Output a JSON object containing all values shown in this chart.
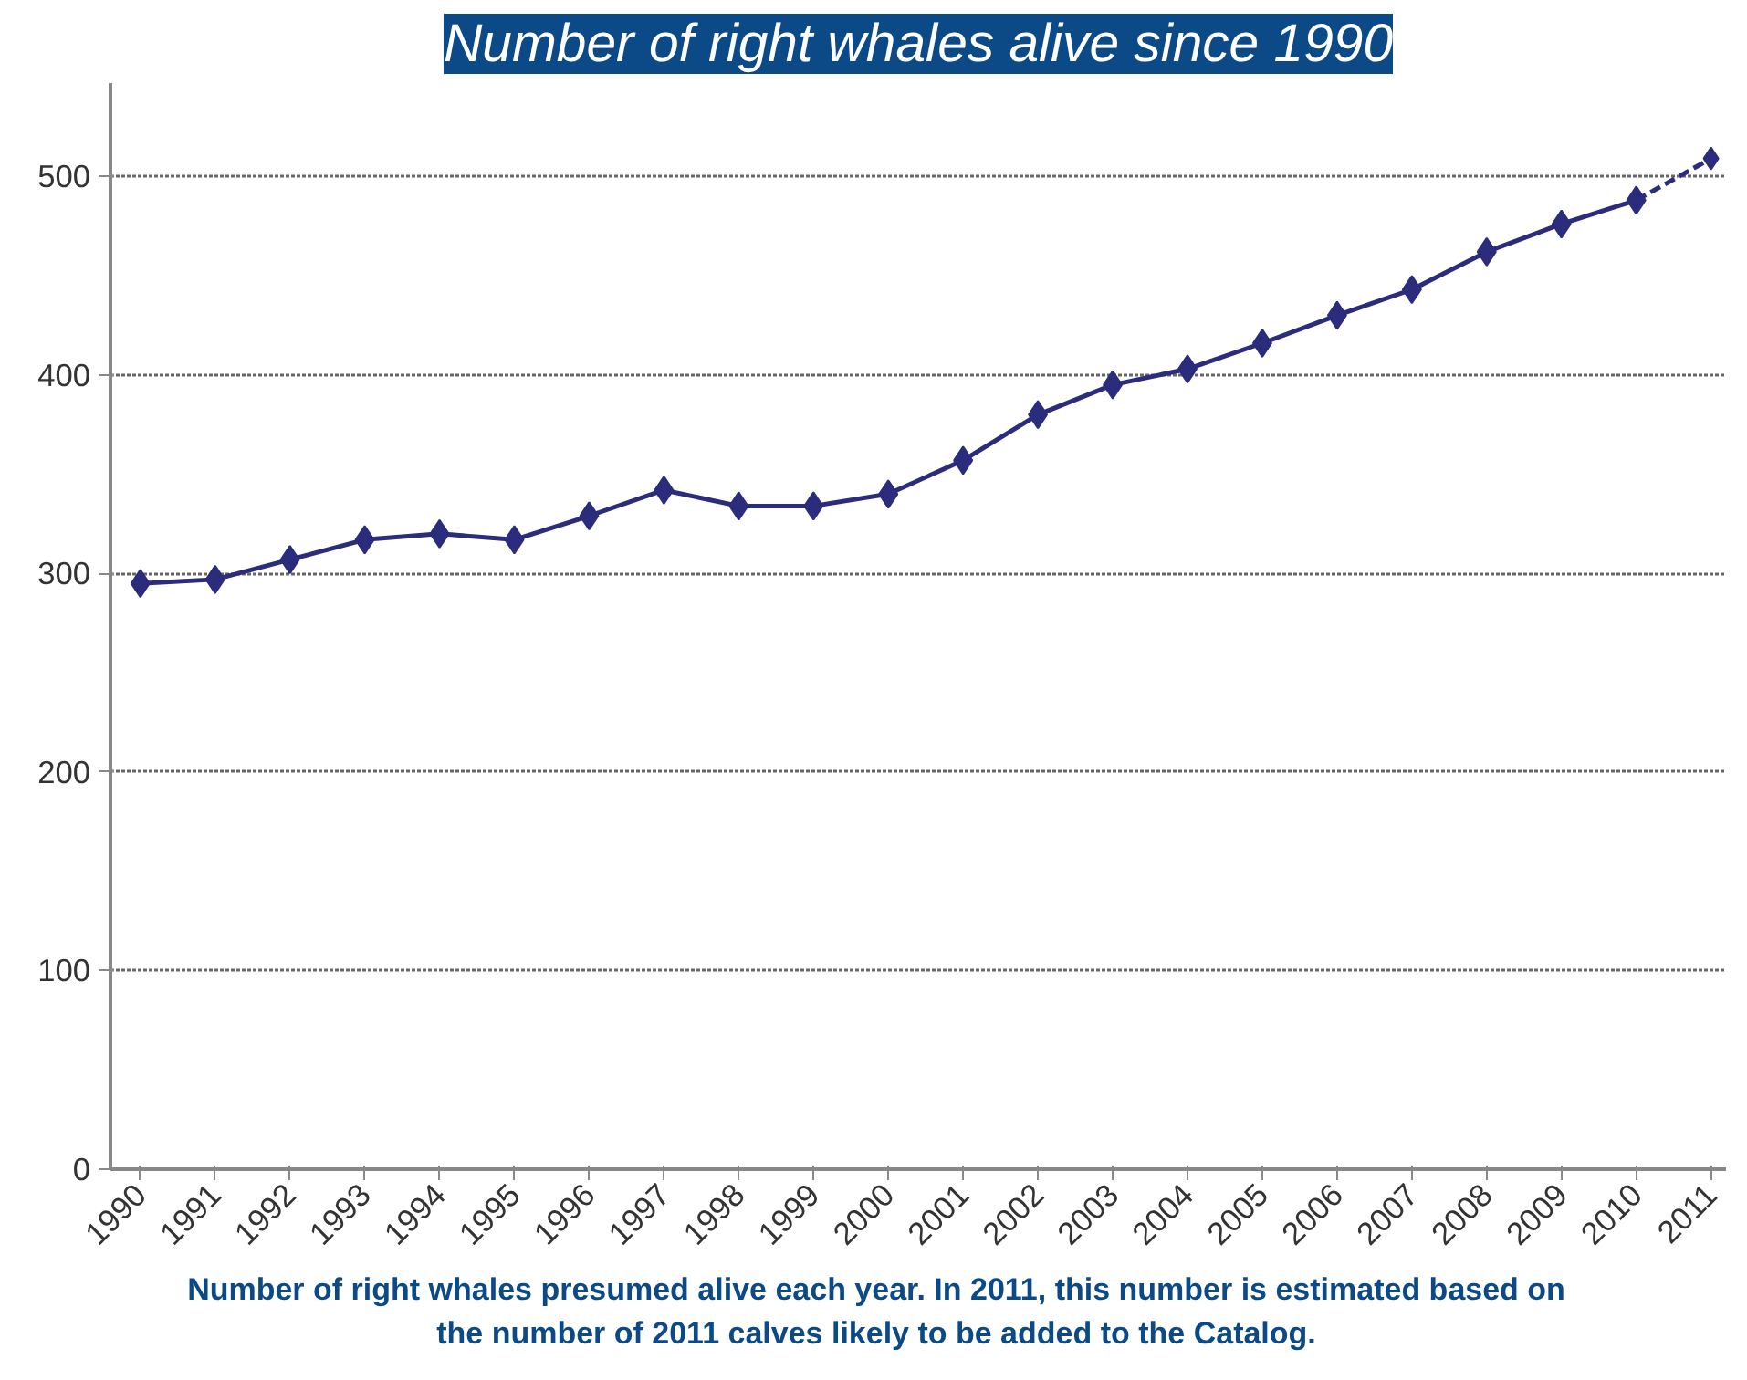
{
  "chart_data": {
    "type": "line",
    "title": "Number of right whales alive since 1990",
    "series": [
      {
        "x": [
          1990,
          1991,
          1992,
          1993,
          1994,
          1995,
          1996,
          1997,
          1998,
          1999,
          2000,
          2001,
          2002,
          2003,
          2004,
          2005,
          2006,
          2007,
          2008,
          2009,
          2010
        ],
        "values": [
          295,
          297,
          307,
          317,
          320,
          317,
          329,
          342,
          334,
          334,
          340,
          357,
          380,
          395,
          403,
          416,
          430,
          443,
          462,
          476,
          488
        ],
        "color": "#2b2c7c",
        "line_style": "solid"
      },
      {
        "x": [
          2010,
          2011
        ],
        "values": [
          488,
          509
        ],
        "color": "#2b2c7c",
        "line_style": "dashed"
      }
    ],
    "xlim": [
      1989.6,
      2011.2
    ],
    "xticks": [
      1990,
      1991,
      1992,
      1993,
      1994,
      1995,
      1996,
      1997,
      1998,
      1999,
      2000,
      2001,
      2002,
      2003,
      2004,
      2005,
      2006,
      2007,
      2008,
      2009,
      2010,
      2011
    ],
    "ylim": [
      0,
      547
    ],
    "yticks": [
      0,
      100,
      200,
      300,
      400,
      500
    ],
    "grid": "y",
    "marker": "diamond",
    "annotations": [
      "Number of right whales presumed alive each year. In 2011, this number is estimated based on the number of 2011 calves likely to be added to the Catalog."
    ]
  }
}
